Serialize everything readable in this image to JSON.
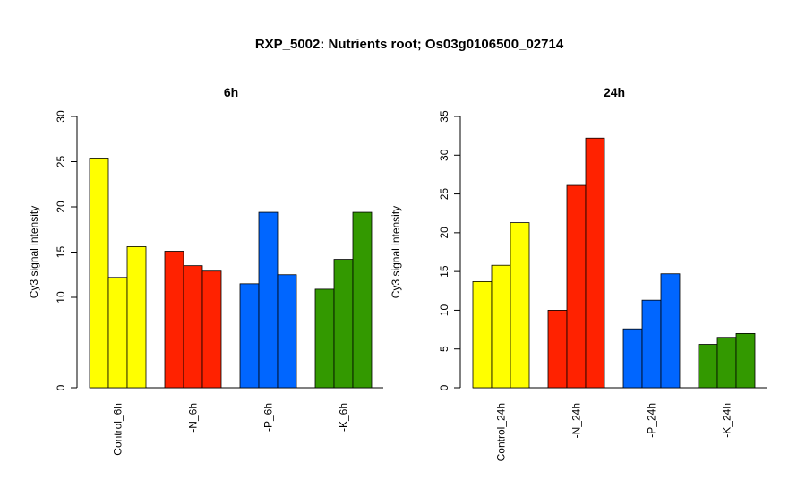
{
  "title": "RXP_5002: Nutrients root; Os03g0106500_02714",
  "chart_data": [
    {
      "type": "bar",
      "title": "6h",
      "ylabel": "Cy3 signal intensity",
      "ylim": [
        0,
        30
      ],
      "yticks": [
        0,
        10,
        15,
        20,
        25,
        30
      ],
      "categories": [
        "Control_6h",
        "-N_6h",
        "-P_6h",
        "-K_6h"
      ],
      "group_colors": [
        "#ffff00",
        "#ff2200",
        "#0066ff",
        "#339900"
      ],
      "groups": [
        {
          "name": "Control_6h",
          "values": [
            25.4,
            12.2,
            15.6
          ]
        },
        {
          "name": "-N_6h",
          "values": [
            15.1,
            13.5,
            12.9
          ]
        },
        {
          "name": "-P_6h",
          "values": [
            11.5,
            19.4,
            12.5
          ]
        },
        {
          "name": "-K_6h",
          "values": [
            10.9,
            14.2,
            19.4
          ]
        }
      ]
    },
    {
      "type": "bar",
      "title": "24h",
      "ylabel": "Cy3 signal intensity",
      "ylim": [
        0,
        35
      ],
      "yticks": [
        0,
        5,
        10,
        15,
        20,
        25,
        30,
        35
      ],
      "categories": [
        "Control_24h",
        "-N_24h",
        "-P_24h",
        "-K_24h"
      ],
      "group_colors": [
        "#ffff00",
        "#ff2200",
        "#0066ff",
        "#339900"
      ],
      "groups": [
        {
          "name": "Control_24h",
          "values": [
            13.7,
            15.8,
            21.3
          ]
        },
        {
          "name": "-N_24h",
          "values": [
            10.0,
            26.1,
            32.2
          ]
        },
        {
          "name": "-P_24h",
          "values": [
            7.6,
            11.3,
            14.7
          ]
        },
        {
          "name": "-K_24h",
          "values": [
            5.6,
            6.5,
            7.0
          ]
        }
      ]
    }
  ]
}
